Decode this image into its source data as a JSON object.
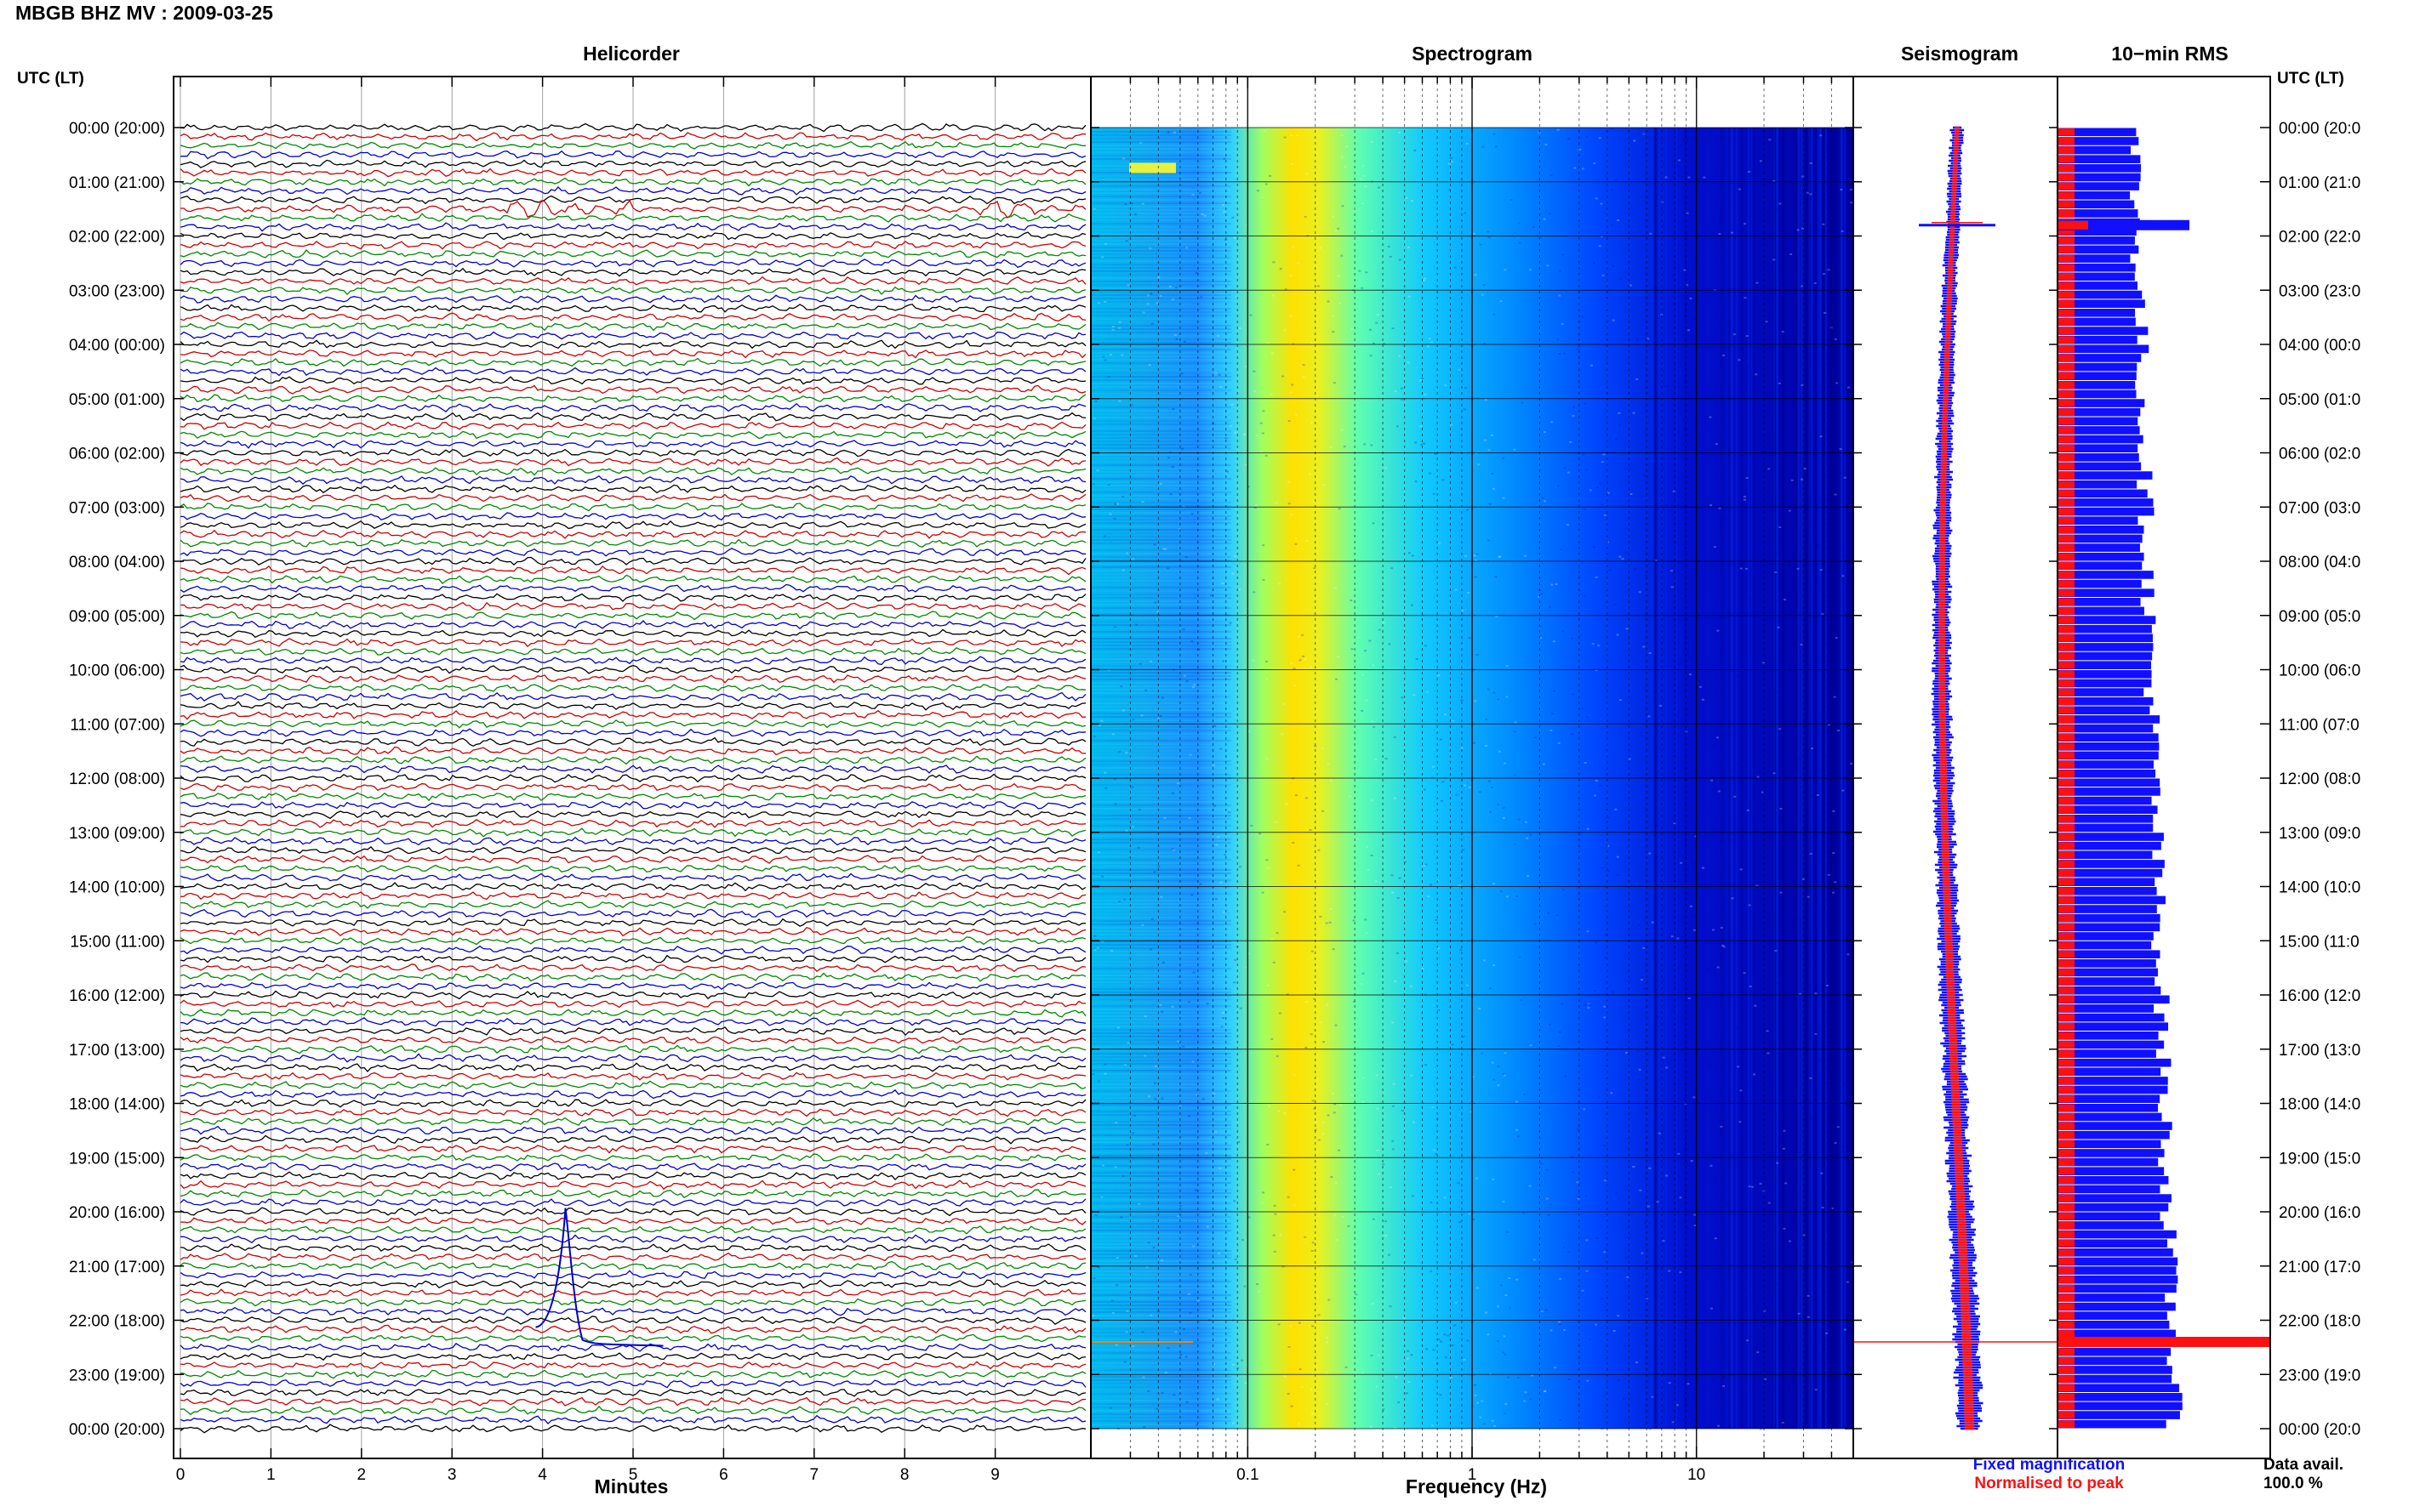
{
  "title": "MBGB BHZ MV : 2009-03-25",
  "panels": {
    "helicorder": "Helicorder",
    "spectrogram": "Spectrogram",
    "seismogram": "Seismogram",
    "rms": "10−min RMS"
  },
  "utc_label_left": "UTC (LT)",
  "utc_label_right": "UTC (LT)",
  "hour_labels": [
    "00:00 (20:00)",
    "01:00 (21:00)",
    "02:00 (22:00)",
    "03:00 (23:00)",
    "04:00 (00:00)",
    "05:00 (01:00)",
    "06:00 (02:00)",
    "07:00 (03:00)",
    "08:00 (04:00)",
    "09:00 (05:00)",
    "10:00 (06:00)",
    "11:00 (07:00)",
    "12:00 (08:00)",
    "13:00 (09:00)",
    "14:00 (10:00)",
    "15:00 (11:00)",
    "16:00 (12:00)",
    "17:00 (13:00)",
    "18:00 (14:00)",
    "19:00 (15:00)",
    "20:00 (16:00)",
    "21:00 (17:00)",
    "22:00 (18:00)",
    "23:00 (19:00)",
    "00:00 (20:00)"
  ],
  "hour_labels_right": [
    "00:00 (20:0",
    "01:00 (21:0",
    "02:00 (22:0",
    "03:00 (23:0",
    "04:00 (00:0",
    "05:00 (01:0",
    "06:00 (02:0",
    "07:00 (03:0",
    "08:00 (04:0",
    "09:00 (05:0",
    "10:00 (06:0",
    "11:00 (07:0",
    "12:00 (08:0",
    "13:00 (09:0",
    "14:00 (10:0",
    "15:00 (11:0",
    "16:00 (12:0",
    "17:00 (13:0",
    "18:00 (14:0",
    "19:00 (15:0",
    "20:00 (16:0",
    "21:00 (17:0",
    "22:00 (18:0",
    "23:00 (19:0",
    "00:00 (20:0"
  ],
  "legend": {
    "fixed": "Fixed magnification",
    "normalised": "Normalised to peak",
    "fixed_color": "#1010ff",
    "normalised_color": "#ff1010"
  },
  "availability": {
    "label": "Data avail.",
    "value": "100.0 %"
  },
  "chart_data": [
    {
      "type": "line",
      "panel": "helicorder",
      "xlabel": "Minutes",
      "x_ticks": [
        0,
        1,
        2,
        3,
        4,
        5,
        6,
        7,
        8,
        9
      ],
      "xlim": [
        0,
        10
      ],
      "ylim_utc_hours": [
        0,
        24
      ],
      "trace_colors": [
        "#000000",
        "#cc0000",
        "#008800",
        "#0000cc"
      ],
      "traces_per_hour": 6,
      "events": [
        {
          "hour": 1.5,
          "minute_start": 3.6,
          "minute_end": 5.0,
          "kind": "burst"
        },
        {
          "hour": 1.5,
          "minute_start": 8.8,
          "minute_end": 9.6,
          "kind": "burst"
        },
        {
          "hour": 21.5,
          "minute": 4.3,
          "kind": "long-period"
        }
      ]
    },
    {
      "type": "heatmap",
      "panel": "spectrogram",
      "xlabel": "Frequency (Hz)",
      "x_scale": "log",
      "x_ticks": [
        0.1,
        1,
        10
      ],
      "x_tick_labels": [
        "0.1",
        "1",
        "10"
      ],
      "xlim": [
        0.02,
        50
      ],
      "ylim_utc_hours": [
        0,
        24
      ],
      "colormap": [
        "#000090",
        "#0000ff",
        "#0060ff",
        "#00c0ff",
        "#40ffc0",
        "#c0ff40",
        "#ffe000",
        "#ff8000"
      ],
      "peak_frequency_hz": 0.2
    },
    {
      "type": "line",
      "panel": "seismogram",
      "series": [
        {
          "name": "Fixed magnification",
          "color": "#1010ff"
        },
        {
          "name": "Normalised to peak",
          "color": "#ff1010"
        }
      ],
      "ylim_utc_hours": [
        0,
        24
      ],
      "events": [
        {
          "hour": 1.8
        },
        {
          "hour": 22.4
        }
      ]
    },
    {
      "type": "bar",
      "panel": "rms",
      "orientation": "horizontal",
      "ylim_utc_hours": [
        0,
        24
      ],
      "bin_minutes": 10,
      "series": [
        {
          "name": "Fixed magnification",
          "color": "#1010ff"
        },
        {
          "name": "Normalised to peak",
          "color": "#ff1010"
        }
      ],
      "outliers": [
        {
          "hour": 1.8,
          "fixed": 0.9
        },
        {
          "hour": 22.4,
          "normalised": 1.0
        }
      ]
    }
  ]
}
